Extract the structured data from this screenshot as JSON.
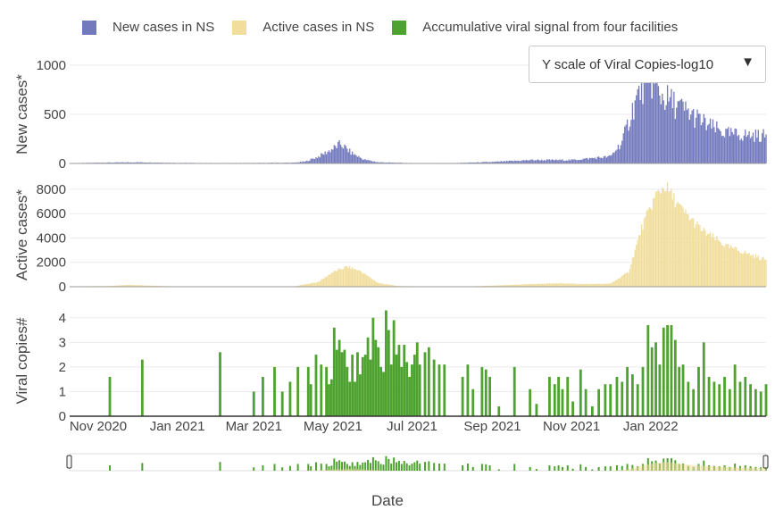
{
  "legend": {
    "new_cases": "New cases in NS",
    "active_cases": "Active cases in NS",
    "viral": "Accumulative viral signal from four facilities"
  },
  "dropdown": {
    "label": "Y scale of Viral Copies-log10",
    "icon": "triangle-down-icon"
  },
  "colors": {
    "new_cases": "#7279bd",
    "active_cases": "#f1dd9c",
    "viral": "#4ea22f",
    "grid": "#ebebeb",
    "axis_text": "#444444"
  },
  "chart_data": {
    "type": "bar",
    "xlabel": "Date",
    "x_range": [
      "2020-10-10",
      "2022-03-31"
    ],
    "x_ticks": [
      {
        "date": "2020-11-01",
        "label": "Nov 2020"
      },
      {
        "date": "2021-01-01",
        "label": "Jan 2021"
      },
      {
        "date": "2021-03-01",
        "label": "Mar 2021"
      },
      {
        "date": "2021-05-01",
        "label": "May 2021"
      },
      {
        "date": "2021-07-01",
        "label": "Jul 2021"
      },
      {
        "date": "2021-09-01",
        "label": "Sep 2021"
      },
      {
        "date": "2021-11-01",
        "label": "Nov 2021"
      },
      {
        "date": "2022-01-01",
        "label": "Jan 2022"
      }
    ],
    "panels": [
      {
        "name": "New cases in NS",
        "ylabel": "New cases*",
        "ylim": [
          0,
          1000
        ],
        "yticks": [
          0,
          500,
          1000
        ],
        "color": "#7279bd",
        "series": [
          [
            "2020-10-10",
            2
          ],
          [
            "2020-11-01",
            8
          ],
          [
            "2020-12-01",
            12
          ],
          [
            "2021-01-01",
            6
          ],
          [
            "2021-02-01",
            4
          ],
          [
            "2021-03-01",
            5
          ],
          [
            "2021-04-01",
            8
          ],
          [
            "2021-04-10",
            20
          ],
          [
            "2021-04-20",
            70
          ],
          [
            "2021-05-01",
            150
          ],
          [
            "2021-05-07",
            200
          ],
          [
            "2021-05-15",
            110
          ],
          [
            "2021-05-25",
            40
          ],
          [
            "2021-06-05",
            12
          ],
          [
            "2021-07-01",
            4
          ],
          [
            "2021-08-01",
            4
          ],
          [
            "2021-09-01",
            15
          ],
          [
            "2021-10-01",
            35
          ],
          [
            "2021-11-01",
            35
          ],
          [
            "2021-12-01",
            70
          ],
          [
            "2021-12-10",
            220
          ],
          [
            "2021-12-18",
            550
          ],
          [
            "2021-12-25",
            780
          ],
          [
            "2022-01-01",
            860
          ],
          [
            "2022-01-08",
            700
          ],
          [
            "2022-01-20",
            600
          ],
          [
            "2022-02-01",
            500
          ],
          [
            "2022-02-15",
            380
          ],
          [
            "2022-03-01",
            300
          ],
          [
            "2022-03-31",
            280
          ]
        ]
      },
      {
        "name": "Active cases in NS",
        "ylabel": "Active cases*",
        "ylim": [
          0,
          8500
        ],
        "yticks": [
          0,
          2000,
          4000,
          6000,
          8000
        ],
        "color": "#f1dd9c",
        "series": [
          [
            "2020-10-10",
            30
          ],
          [
            "2020-11-10",
            60
          ],
          [
            "2020-11-25",
            150
          ],
          [
            "2020-12-15",
            80
          ],
          [
            "2021-01-01",
            25
          ],
          [
            "2021-03-01",
            15
          ],
          [
            "2021-04-01",
            25
          ],
          [
            "2021-04-20",
            400
          ],
          [
            "2021-05-01",
            1200
          ],
          [
            "2021-05-12",
            1650
          ],
          [
            "2021-05-22",
            1300
          ],
          [
            "2021-06-05",
            300
          ],
          [
            "2021-06-20",
            60
          ],
          [
            "2021-07-15",
            20
          ],
          [
            "2021-08-15",
            30
          ],
          [
            "2021-09-10",
            120
          ],
          [
            "2021-10-01",
            220
          ],
          [
            "2021-10-25",
            280
          ],
          [
            "2021-11-10",
            220
          ],
          [
            "2021-12-01",
            250
          ],
          [
            "2021-12-15",
            1200
          ],
          [
            "2021-12-25",
            4800
          ],
          [
            "2022-01-05",
            7500
          ],
          [
            "2022-01-12",
            8300
          ],
          [
            "2022-01-25",
            6300
          ],
          [
            "2022-02-10",
            4600
          ],
          [
            "2022-03-01",
            3300
          ],
          [
            "2022-03-31",
            2200
          ]
        ]
      },
      {
        "name": "Accumulative viral signal from four facilities",
        "ylabel": "Viral copies#",
        "ylim": [
          0,
          4.5
        ],
        "yticks": [
          0,
          1,
          2,
          3,
          4
        ],
        "color": "#4ea22f",
        "series": [
          [
            "2020-11-10",
            1.6
          ],
          [
            "2020-12-05",
            2.3
          ],
          [
            "2021-02-03",
            2.6
          ],
          [
            "2021-03-01",
            1.0
          ],
          [
            "2021-03-08",
            1.6
          ],
          [
            "2021-03-17",
            2.0
          ],
          [
            "2021-03-23",
            1.0
          ],
          [
            "2021-03-29",
            1.4
          ],
          [
            "2021-04-04",
            2.0
          ],
          [
            "2021-04-12",
            2.0
          ],
          [
            "2021-04-14",
            1.3
          ],
          [
            "2021-04-18",
            2.5
          ],
          [
            "2021-04-22",
            2.1
          ],
          [
            "2021-04-26",
            2.0
          ],
          [
            "2021-04-28",
            1.3
          ],
          [
            "2021-04-30",
            1.5
          ],
          [
            "2021-05-02",
            3.6
          ],
          [
            "2021-05-04",
            2.7
          ],
          [
            "2021-05-06",
            3.1
          ],
          [
            "2021-05-08",
            2.6
          ],
          [
            "2021-05-10",
            2.7
          ],
          [
            "2021-05-12",
            2.0
          ],
          [
            "2021-05-14",
            1.4
          ],
          [
            "2021-05-16",
            2.5
          ],
          [
            "2021-05-18",
            1.4
          ],
          [
            "2021-05-20",
            2.6
          ],
          [
            "2021-05-22",
            1.7
          ],
          [
            "2021-05-24",
            2.4
          ],
          [
            "2021-05-26",
            2.5
          ],
          [
            "2021-05-28",
            3.2
          ],
          [
            "2021-05-30",
            2.3
          ],
          [
            "2021-06-01",
            4.0
          ],
          [
            "2021-06-03",
            3.1
          ],
          [
            "2021-06-05",
            2.8
          ],
          [
            "2021-06-07",
            2.0
          ],
          [
            "2021-06-09",
            1.8
          ],
          [
            "2021-06-11",
            4.3
          ],
          [
            "2021-06-13",
            3.5
          ],
          [
            "2021-06-15",
            2.1
          ],
          [
            "2021-06-17",
            3.9
          ],
          [
            "2021-06-19",
            2.5
          ],
          [
            "2021-06-21",
            2.9
          ],
          [
            "2021-06-23",
            2.0
          ],
          [
            "2021-06-25",
            2.9
          ],
          [
            "2021-06-27",
            2.2
          ],
          [
            "2021-06-29",
            1.6
          ],
          [
            "2021-07-01",
            2.1
          ],
          [
            "2021-07-03",
            2.5
          ],
          [
            "2021-07-05",
            3.0
          ],
          [
            "2021-07-07",
            2.1
          ],
          [
            "2021-07-11",
            2.6
          ],
          [
            "2021-07-14",
            2.8
          ],
          [
            "2021-07-18",
            2.3
          ],
          [
            "2021-07-22",
            2.1
          ],
          [
            "2021-07-26",
            2.1
          ],
          [
            "2021-08-09",
            1.6
          ],
          [
            "2021-08-13",
            2.1
          ],
          [
            "2021-08-17",
            1.1
          ],
          [
            "2021-08-24",
            2.0
          ],
          [
            "2021-08-27",
            1.9
          ],
          [
            "2021-08-30",
            1.6
          ],
          [
            "2021-09-06",
            0.4
          ],
          [
            "2021-09-18",
            2.0
          ],
          [
            "2021-09-30",
            1.1
          ],
          [
            "2021-10-05",
            0.5
          ],
          [
            "2021-10-15",
            1.6
          ],
          [
            "2021-10-19",
            1.3
          ],
          [
            "2021-10-22",
            1.6
          ],
          [
            "2021-10-25",
            1.1
          ],
          [
            "2021-10-29",
            1.6
          ],
          [
            "2021-11-02",
            0.6
          ],
          [
            "2021-11-08",
            1.9
          ],
          [
            "2021-11-12",
            1.1
          ],
          [
            "2021-11-17",
            0.4
          ],
          [
            "2021-11-22",
            1.1
          ],
          [
            "2021-11-27",
            1.3
          ],
          [
            "2021-12-01",
            1.3
          ],
          [
            "2021-12-06",
            1.6
          ],
          [
            "2021-12-10",
            1.4
          ],
          [
            "2021-12-14",
            2.0
          ],
          [
            "2021-12-18",
            1.7
          ],
          [
            "2021-12-22",
            1.3
          ],
          [
            "2021-12-26",
            2.0
          ],
          [
            "2021-12-30",
            3.7
          ],
          [
            "2022-01-02",
            2.8
          ],
          [
            "2022-01-05",
            3.0
          ],
          [
            "2022-01-08",
            2.1
          ],
          [
            "2022-01-11",
            3.6
          ],
          [
            "2022-01-14",
            3.7
          ],
          [
            "2022-01-17",
            3.7
          ],
          [
            "2022-01-20",
            3.1
          ],
          [
            "2022-01-23",
            2.0
          ],
          [
            "2022-01-26",
            2.1
          ],
          [
            "2022-01-30",
            1.4
          ],
          [
            "2022-02-03",
            1.1
          ],
          [
            "2022-02-07",
            2.0
          ],
          [
            "2022-02-11",
            3.0
          ],
          [
            "2022-02-15",
            1.6
          ],
          [
            "2022-02-19",
            1.4
          ],
          [
            "2022-02-23",
            1.3
          ],
          [
            "2022-02-27",
            1.6
          ],
          [
            "2022-03-03",
            1.1
          ],
          [
            "2022-03-07",
            2.1
          ],
          [
            "2022-03-11",
            1.4
          ],
          [
            "2022-03-15",
            1.6
          ],
          [
            "2022-03-19",
            1.3
          ],
          [
            "2022-03-23",
            1.1
          ],
          [
            "2022-03-27",
            1.0
          ],
          [
            "2022-03-31",
            1.3
          ]
        ]
      }
    ],
    "grid": true,
    "legend_position": "top",
    "range_slider": true
  }
}
